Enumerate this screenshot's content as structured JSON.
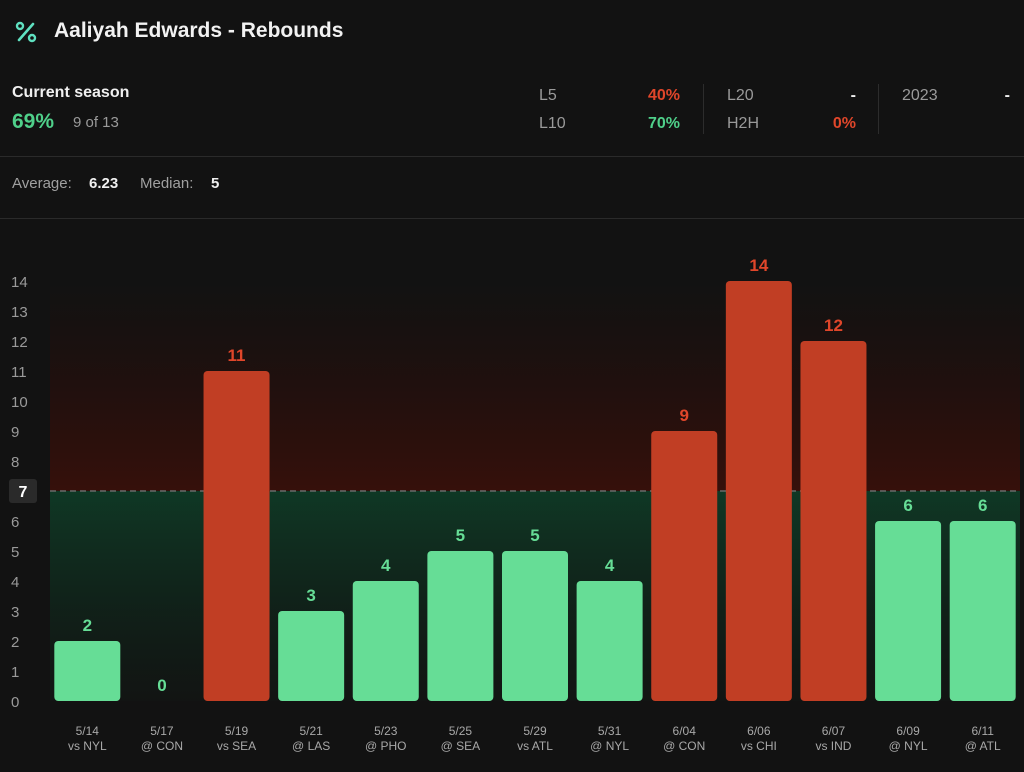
{
  "header": {
    "title": "Aaliyah Edwards - Rebounds",
    "icon": "percent-icon"
  },
  "season": {
    "label": "Current season",
    "pct": "69%",
    "count": "9 of 13"
  },
  "splits": [
    {
      "label": "L5",
      "value": "40%",
      "tone": "red"
    },
    {
      "label": "L10",
      "value": "70%",
      "tone": "green"
    },
    {
      "label": "L20",
      "value": "-",
      "tone": "white"
    },
    {
      "label": "H2H",
      "value": "0%",
      "tone": "red"
    },
    {
      "label": "2023",
      "value": "-",
      "tone": "white"
    }
  ],
  "summary": {
    "average_label": "Average:",
    "average": "6.23",
    "median_label": "Median:",
    "median": "5"
  },
  "colors": {
    "over": "#66dd96",
    "under": "#c13e24",
    "over_label": "#66dd96",
    "under_label": "#e0462a"
  },
  "chart_data": {
    "type": "bar",
    "line": 7,
    "ylim": [
      0,
      14
    ],
    "yticks": [
      0,
      1,
      2,
      3,
      4,
      5,
      6,
      7,
      8,
      9,
      10,
      11,
      12,
      13,
      14
    ],
    "categories": [
      {
        "date": "5/14",
        "opp": "vs NYL"
      },
      {
        "date": "5/17",
        "opp": "@ CON"
      },
      {
        "date": "5/19",
        "opp": "vs SEA"
      },
      {
        "date": "5/21",
        "opp": "@ LAS"
      },
      {
        "date": "5/23",
        "opp": "@ PHO"
      },
      {
        "date": "5/25",
        "opp": "@ SEA"
      },
      {
        "date": "5/29",
        "opp": "vs ATL"
      },
      {
        "date": "5/31",
        "opp": "@ NYL"
      },
      {
        "date": "6/04",
        "opp": "@ CON"
      },
      {
        "date": "6/06",
        "opp": "vs CHI"
      },
      {
        "date": "6/07",
        "opp": "vs IND"
      },
      {
        "date": "6/09",
        "opp": "@ NYL"
      },
      {
        "date": "6/11",
        "opp": "@ ATL"
      }
    ],
    "values": [
      2,
      0,
      11,
      3,
      4,
      5,
      5,
      4,
      9,
      14,
      12,
      6,
      6
    ]
  }
}
